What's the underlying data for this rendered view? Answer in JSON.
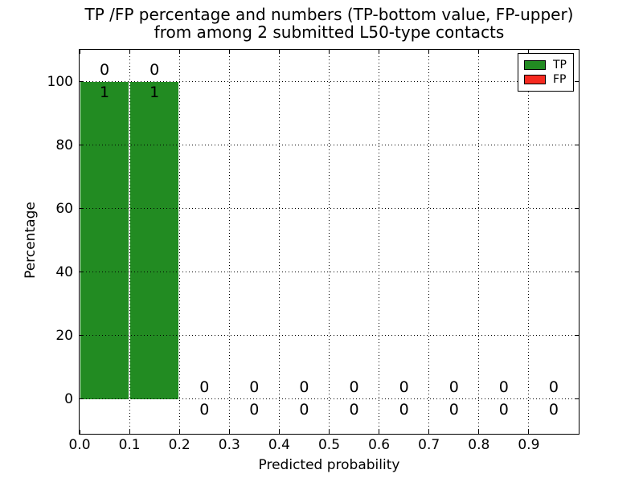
{
  "chart_data": {
    "type": "bar",
    "title_line1": "TP /FP percentage and numbers (TP-bottom value, FP-upper)",
    "title_line2": "from among 2 submitted L50-type contacts",
    "xlabel": "Predicted probability",
    "ylabel": "Percentage",
    "xlim": [
      0.0,
      1.0
    ],
    "ylim": [
      -11,
      110
    ],
    "xtick_values": [
      0.0,
      0.1,
      0.2,
      0.3,
      0.4,
      0.5,
      0.6,
      0.7,
      0.8,
      0.9
    ],
    "xtick_labels": [
      "0.0",
      "0.1",
      "0.2",
      "0.3",
      "0.4",
      "0.5",
      "0.6",
      "0.7",
      "0.8",
      "0.9"
    ],
    "ytick_values": [
      0,
      20,
      40,
      60,
      80,
      100
    ],
    "ytick_labels": [
      "0",
      "20",
      "40",
      "60",
      "80",
      "100"
    ],
    "grid": "dotted",
    "legend_position": "upper-right",
    "total_submitted_contacts": 2,
    "contact_type": "L50",
    "colors": {
      "tp": "#228b22",
      "fp": "#f62a20",
      "axis": "#000000",
      "grid": "#000000"
    },
    "legend": [
      {
        "label": "TP",
        "color_key": "tp"
      },
      {
        "label": "FP",
        "color_key": "fp"
      }
    ],
    "bins": [
      {
        "x_start": 0.0,
        "x_end": 0.1,
        "tp_percent": 100,
        "fp_percent": 0,
        "tp_count": 1,
        "fp_count": 0
      },
      {
        "x_start": 0.1,
        "x_end": 0.2,
        "tp_percent": 100,
        "fp_percent": 0,
        "tp_count": 1,
        "fp_count": 0
      },
      {
        "x_start": 0.2,
        "x_end": 0.3,
        "tp_percent": 0,
        "fp_percent": 0,
        "tp_count": 0,
        "fp_count": 0
      },
      {
        "x_start": 0.3,
        "x_end": 0.4,
        "tp_percent": 0,
        "fp_percent": 0,
        "tp_count": 0,
        "fp_count": 0
      },
      {
        "x_start": 0.4,
        "x_end": 0.5,
        "tp_percent": 0,
        "fp_percent": 0,
        "tp_count": 0,
        "fp_count": 0
      },
      {
        "x_start": 0.5,
        "x_end": 0.6,
        "tp_percent": 0,
        "fp_percent": 0,
        "tp_count": 0,
        "fp_count": 0
      },
      {
        "x_start": 0.6,
        "x_end": 0.7,
        "tp_percent": 0,
        "fp_percent": 0,
        "tp_count": 0,
        "fp_count": 0
      },
      {
        "x_start": 0.7,
        "x_end": 0.8,
        "tp_percent": 0,
        "fp_percent": 0,
        "tp_count": 0,
        "fp_count": 0
      },
      {
        "x_start": 0.8,
        "x_end": 0.9,
        "tp_percent": 0,
        "fp_percent": 0,
        "tp_count": 0,
        "fp_count": 0
      },
      {
        "x_start": 0.9,
        "x_end": 1.0,
        "tp_percent": 0,
        "fp_percent": 0,
        "tp_count": 0,
        "fp_count": 0
      }
    ]
  }
}
